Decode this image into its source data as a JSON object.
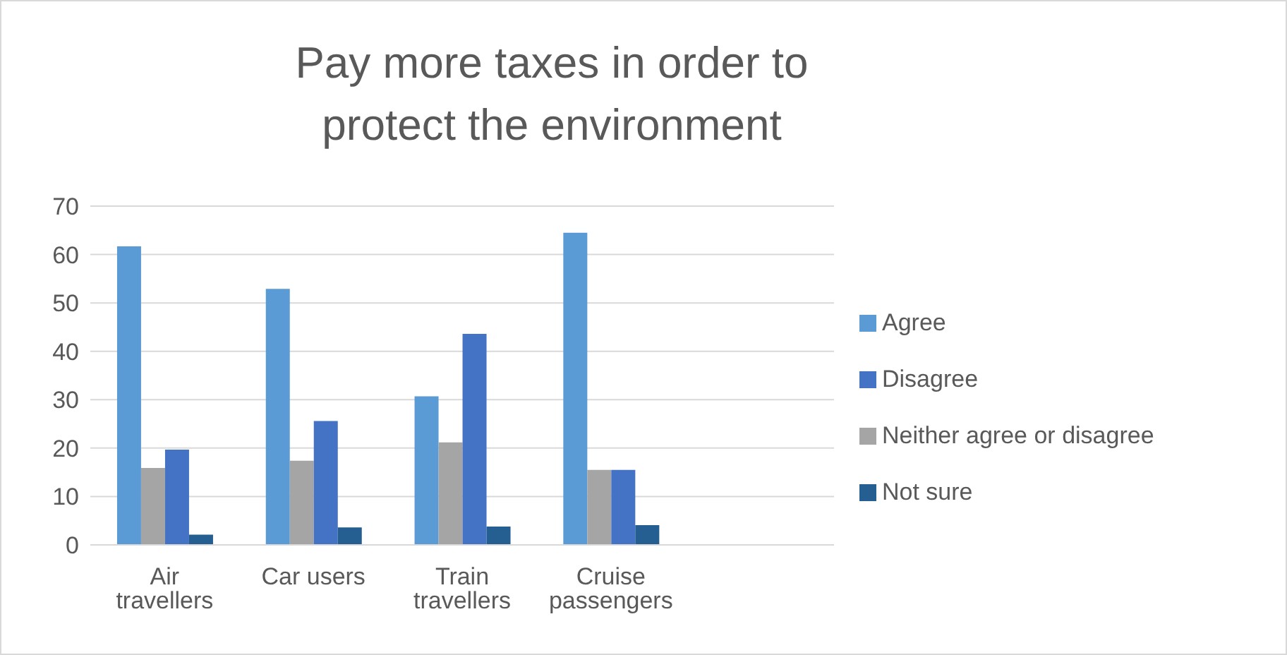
{
  "chart_data": {
    "type": "bar",
    "title": "Pay more taxes in order to protect the environment",
    "categories": [
      "Air travellers",
      "Car users",
      "Train travellers",
      "Cruise passengers",
      null
    ],
    "series": [
      {
        "name": "Agree",
        "color": "#5b9bd5",
        "values": [
          61.7,
          52.9,
          30.7,
          64.5,
          null
        ]
      },
      {
        "name": "Neither agree or disagree",
        "color": "#a5a5a5",
        "values": [
          15.9,
          17.4,
          21.2,
          15.5,
          null
        ]
      },
      {
        "name": "Disagree",
        "color": "#4472c4",
        "values": [
          19.7,
          25.6,
          43.6,
          15.5,
          null
        ]
      },
      {
        "name": "Not sure",
        "color": "#255e91",
        "values": [
          2.1,
          3.6,
          3.8,
          4.1,
          null
        ]
      }
    ],
    "ylim": [
      0,
      70
    ],
    "yticks": [
      0,
      10,
      20,
      30,
      40,
      50,
      60,
      70
    ],
    "grid": "y",
    "legend": "right"
  }
}
